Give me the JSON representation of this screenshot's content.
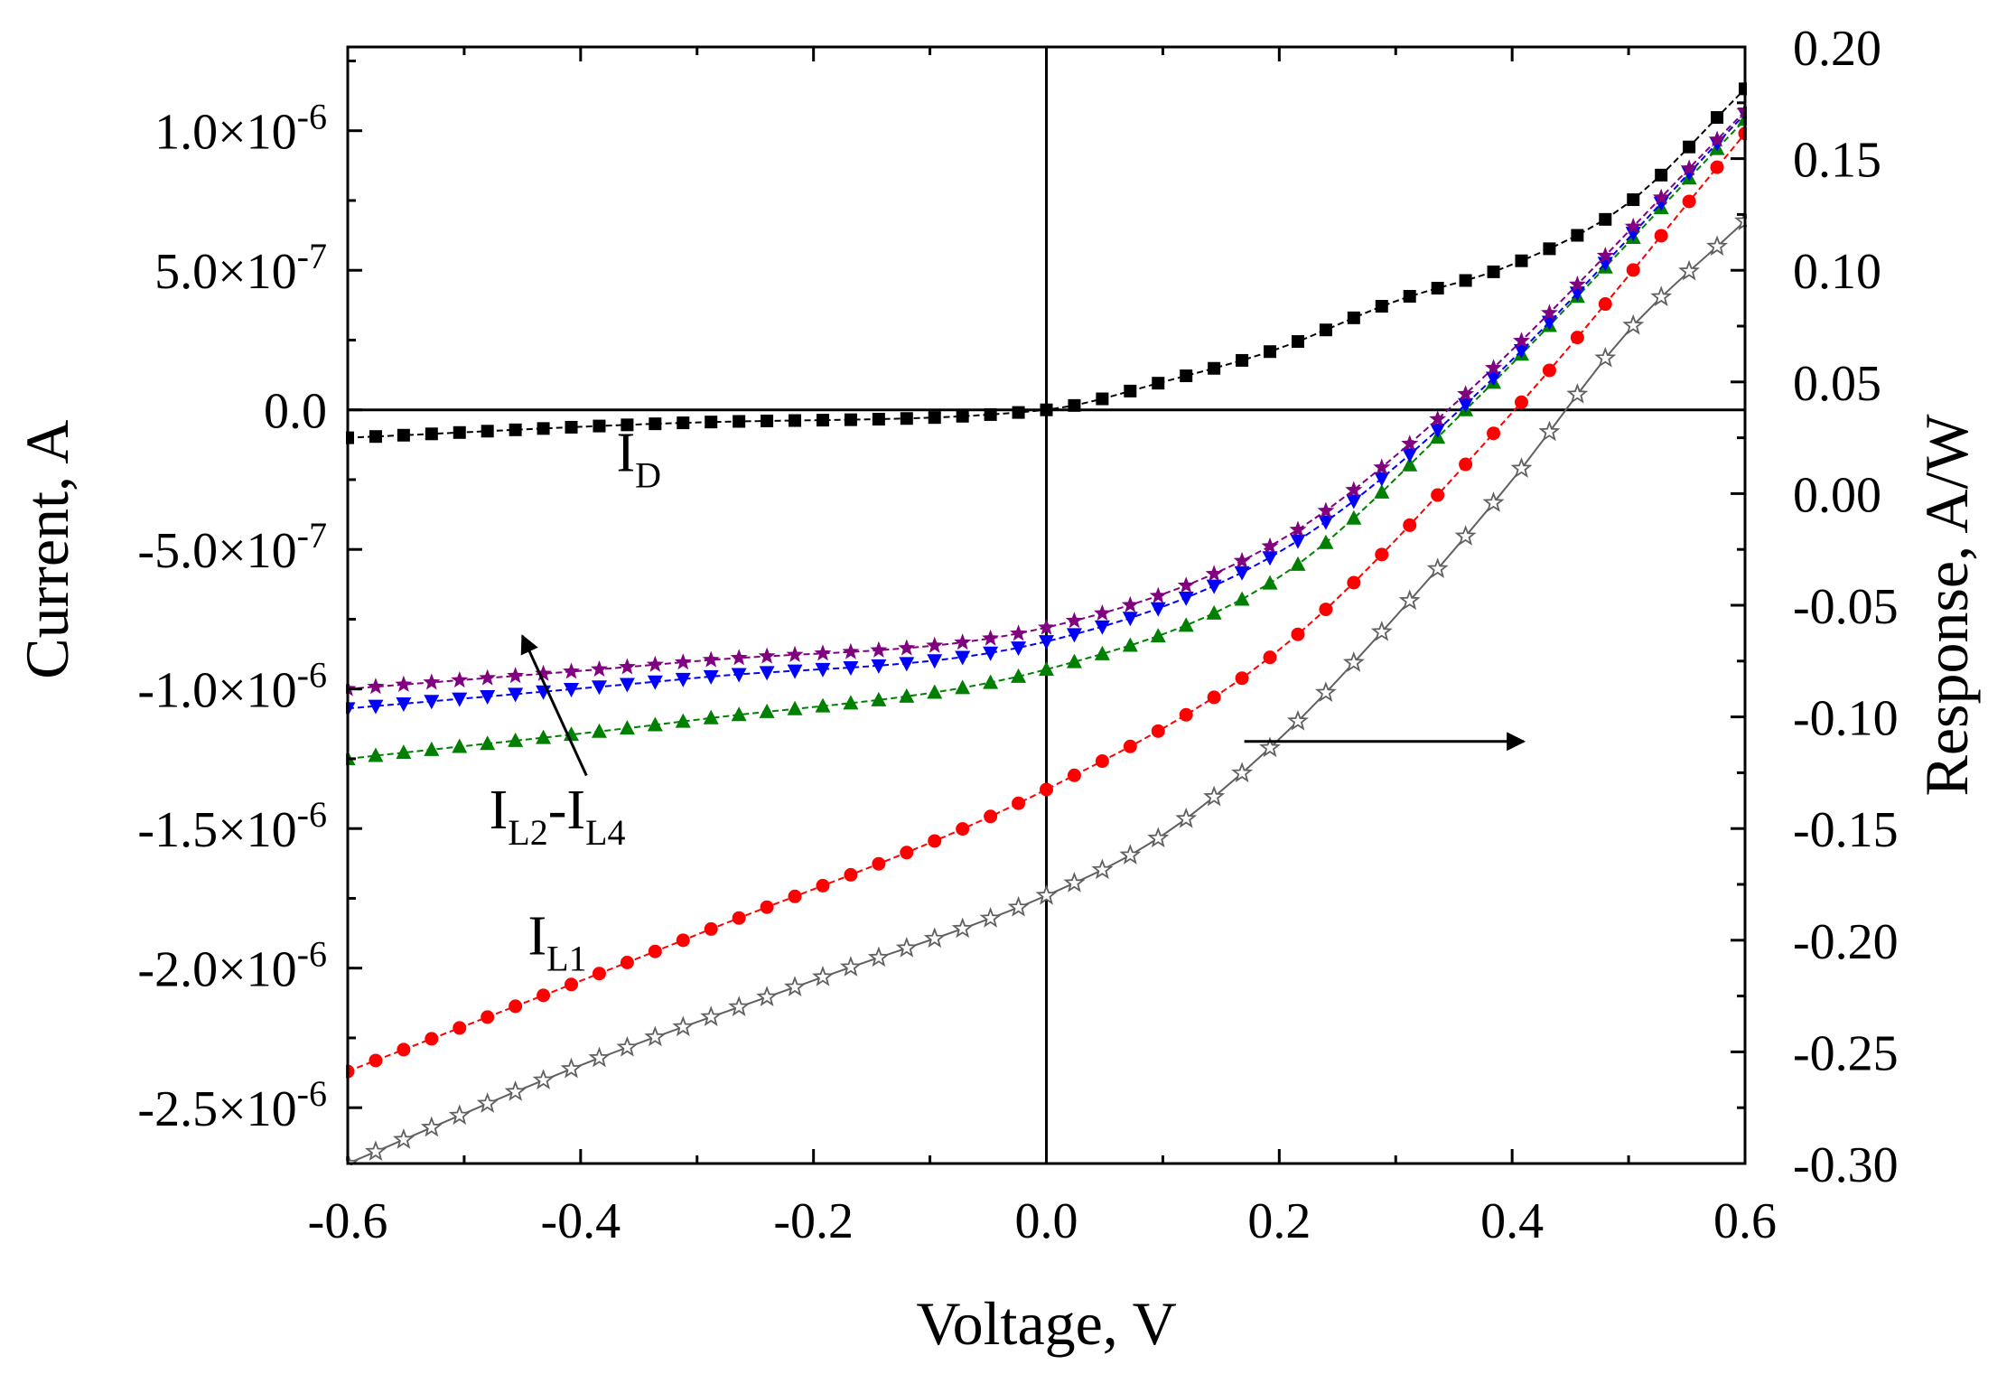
{
  "chart_data": {
    "type": "line",
    "title": "",
    "xlabel": "Voltage, V",
    "ylabel": "Current, A",
    "y2label": "Response, A/W",
    "xlim": [
      -0.6,
      0.6
    ],
    "ylim": [
      -2.7e-06,
      1.3e-06
    ],
    "y2lim": [
      -0.3,
      0.2
    ],
    "x_ticks": [
      "-0.6",
      "-0.4",
      "-0.2",
      "0.0",
      "0.2",
      "0.4",
      "0.6"
    ],
    "y_ticks": [
      {
        "mantissa": "1.0",
        "exponent": "-6",
        "value": 1e-06
      },
      {
        "mantissa": "5.0",
        "exponent": "-7",
        "value": 5e-07
      },
      {
        "mantissa": "0.0",
        "exponent": "",
        "value": 0
      },
      {
        "mantissa": "-5.0",
        "exponent": "-7",
        "value": -5e-07
      },
      {
        "mantissa": "-1.0",
        "exponent": "-6",
        "value": -1e-06
      },
      {
        "mantissa": "-1.5",
        "exponent": "-6",
        "value": -1.5e-06
      },
      {
        "mantissa": "-2.0",
        "exponent": "-6",
        "value": -2e-06
      },
      {
        "mantissa": "-2.5",
        "exponent": "-6",
        "value": -2.5e-06
      }
    ],
    "y2_ticks": [
      "0.20",
      "0.15",
      "0.10",
      "0.05",
      "0.00",
      "-0.05",
      "-0.10",
      "-0.15",
      "-0.20",
      "-0.25",
      "-0.30"
    ],
    "x_points": 51,
    "series": [
      {
        "name": "I_D",
        "axis": "left",
        "marker": "square",
        "color": "#000000",
        "model": "dark",
        "points": [
          [
            -0.6,
            -1e-07
          ],
          [
            -0.3,
            -4.5e-08
          ],
          [
            0.0,
            0.0
          ],
          [
            0.1,
            1e-07
          ],
          [
            0.2,
            2.2e-07
          ],
          [
            0.3,
            3.9e-07
          ],
          [
            0.4,
            5.2e-07
          ],
          [
            0.5,
            7.4e-07
          ],
          [
            0.6,
            1.15e-06
          ]
        ]
      },
      {
        "name": "I_L1",
        "axis": "left",
        "marker": "circle",
        "color": "#ff0000",
        "model": "light",
        "points": [
          [
            -0.6,
            -2.37e-06
          ],
          [
            -0.3,
            -1.88e-06
          ],
          [
            0.0,
            -1.36e-06
          ],
          [
            0.2,
            -8.6e-07
          ],
          [
            0.4,
            -1e-08
          ],
          [
            0.6,
            9.9e-07
          ]
        ]
      },
      {
        "name": "I_L2",
        "axis": "left",
        "marker": "triangle-up",
        "color": "#008000",
        "model": "light",
        "points": [
          [
            -0.6,
            -1.25e-06
          ],
          [
            -0.3,
            -1.11e-06
          ],
          [
            0.0,
            -9.3e-07
          ],
          [
            0.2,
            -6e-07
          ],
          [
            0.36,
            0.0
          ],
          [
            0.6,
            1.04e-06
          ]
        ]
      },
      {
        "name": "I_L3",
        "axis": "left",
        "marker": "triangle-down",
        "color": "#0000ff",
        "model": "light",
        "points": [
          [
            -0.6,
            -1.07e-06
          ],
          [
            -0.3,
            -9.6e-07
          ],
          [
            0.0,
            -8.3e-07
          ],
          [
            0.2,
            -5.1e-07
          ],
          [
            0.355,
            0.0
          ],
          [
            0.6,
            1.06e-06
          ]
        ]
      },
      {
        "name": "I_L4",
        "axis": "left",
        "marker": "star",
        "color": "#800080",
        "model": "light",
        "points": [
          [
            -0.6,
            -1e-06
          ],
          [
            -0.3,
            -9e-07
          ],
          [
            0.0,
            -7.8e-07
          ],
          [
            0.2,
            -4.7e-07
          ],
          [
            0.345,
            0.0
          ],
          [
            0.6,
            1.07e-06
          ]
        ]
      },
      {
        "name": "Response",
        "axis": "right",
        "marker": "open-star",
        "color": "#606060",
        "model": "light",
        "points": [
          [
            -0.6,
            -0.3
          ],
          [
            -0.4,
            -0.256
          ],
          [
            -0.2,
            -0.218
          ],
          [
            0.0,
            -0.18
          ],
          [
            0.1,
            -0.153
          ],
          [
            0.2,
            -0.11
          ],
          [
            0.3,
            -0.055
          ],
          [
            0.4,
            0.006
          ],
          [
            0.5,
            0.073
          ],
          [
            0.6,
            0.122
          ]
        ]
      }
    ],
    "annotations": [
      {
        "main": "I",
        "sub": "D"
      },
      {
        "main": "I",
        "sub": "L2",
        "dash": "-I",
        "sub2": "L4"
      },
      {
        "main": "I",
        "sub": "L1"
      }
    ],
    "arrows": [
      {
        "from": [
          -0.395,
          -1.31e-06
        ],
        "to": [
          -0.45,
          -8.1e-07
        ],
        "meaning": "increasing I_L2 to I_L4"
      },
      {
        "from": [
          0.17,
          -0.111
        ],
        "to": [
          0.41,
          -0.111
        ],
        "meaning": "curve read on right axis"
      }
    ]
  }
}
